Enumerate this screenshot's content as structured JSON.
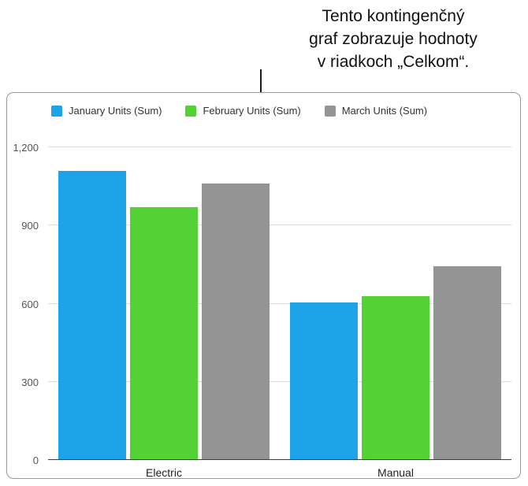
{
  "annotation": {
    "lines": [
      "Tento kontingenčný",
      "graf zobrazuje hodnoty",
      "v riadkoch „Celkom“."
    ]
  },
  "chart_data": {
    "type": "bar",
    "title": "",
    "xlabel": "",
    "ylabel": "",
    "categories": [
      "Electric",
      "Manual"
    ],
    "series": [
      {
        "name": "January Units (Sum)",
        "color": "#1da3e8",
        "values": [
          1110,
          605
        ]
      },
      {
        "name": "February Units (Sum)",
        "color": "#54d235",
        "values": [
          970,
          630
        ]
      },
      {
        "name": "March Units (Sum)",
        "color": "#949494",
        "values": [
          1060,
          745
        ]
      }
    ],
    "ylim": [
      0,
      1200
    ],
    "yticks": [
      0,
      300,
      600,
      900,
      1200
    ],
    "ytick_labels": [
      "0",
      "300",
      "600",
      "900",
      "1,200"
    ],
    "legend_position": "top",
    "grid": true
  }
}
